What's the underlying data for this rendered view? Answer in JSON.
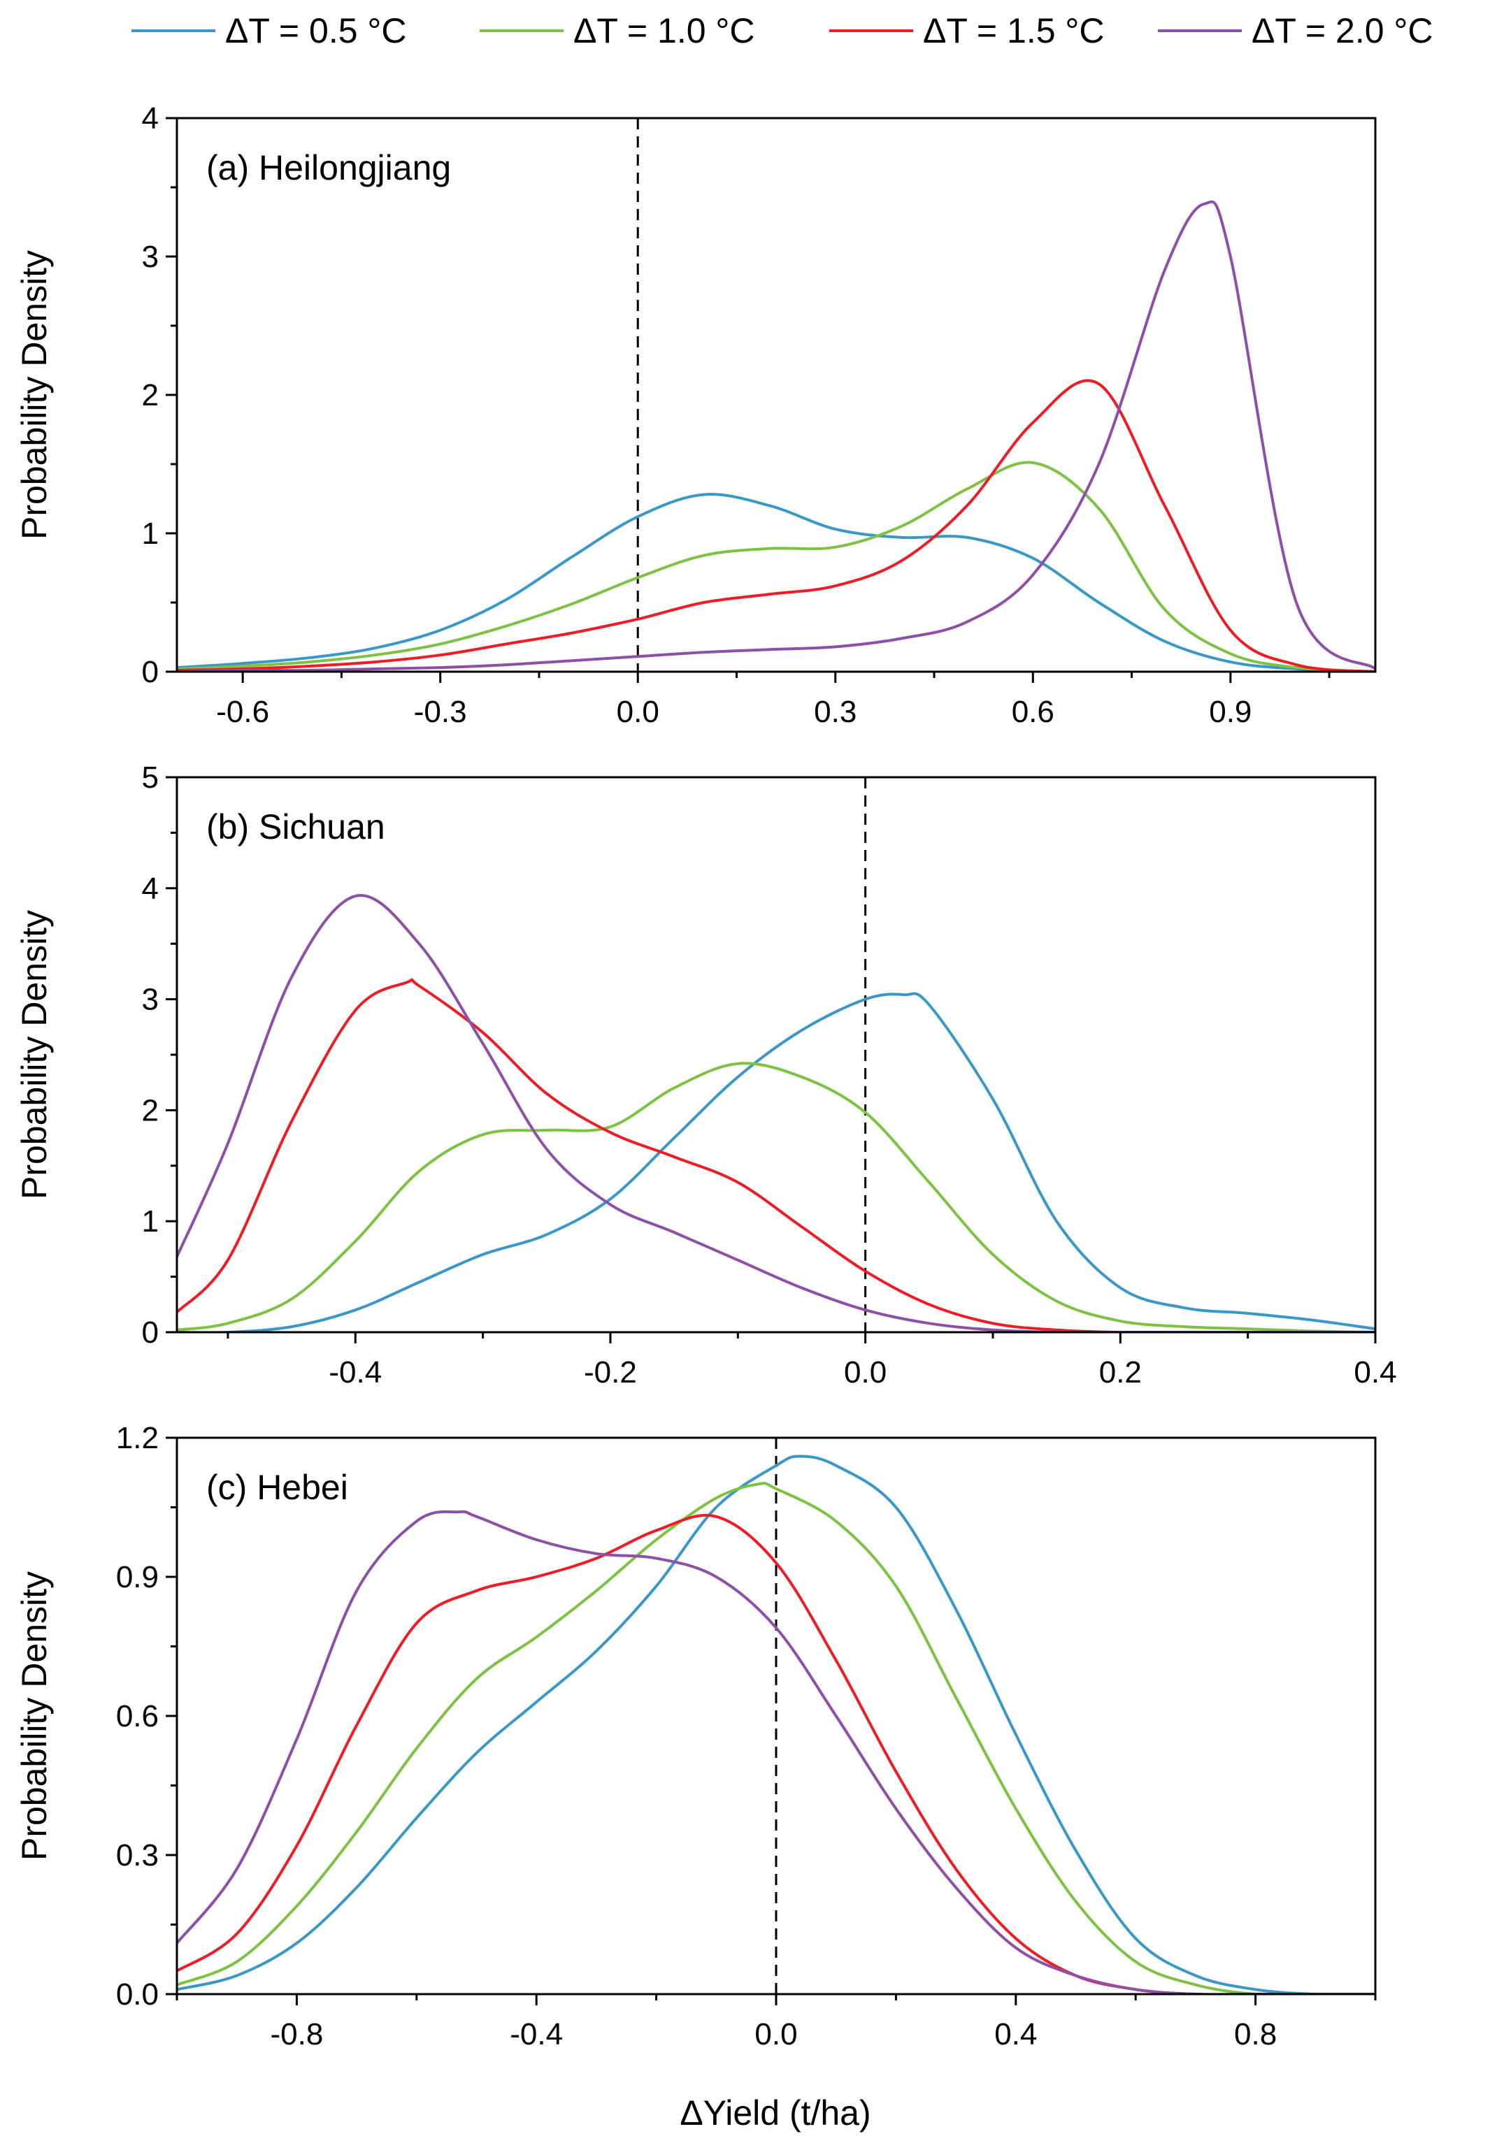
{
  "colors": {
    "series": [
      "#3A98C9",
      "#7DC242",
      "#EE1C24",
      "#8E4FA8"
    ]
  },
  "legend": {
    "position": "top",
    "items": [
      "ΔT = 0.5 °C",
      "ΔT = 1.0 °C",
      "ΔT = 1.5 °C",
      "ΔT = 2.0 °C"
    ]
  },
  "shared_xlabel": "ΔYield (t/ha)",
  "chart_data": [
    {
      "type": "line",
      "title": "(a) Heilongjiang",
      "ylabel": "Probability Density",
      "xlabel": "",
      "xlim": [
        -0.7,
        1.12
      ],
      "ylim": [
        0,
        4
      ],
      "xticks": [
        -0.6,
        -0.3,
        0.0,
        0.3,
        0.6,
        0.9
      ],
      "xtick_labels": [
        "-0.6",
        "-0.3",
        "0.0",
        "0.3",
        "0.6",
        "0.9"
      ],
      "yticks": [
        0,
        1,
        2,
        3,
        4
      ],
      "ytick_labels": [
        "0",
        "1",
        "2",
        "3",
        "4"
      ],
      "reference_line_x": 0.0,
      "series": [
        {
          "name": "ΔT = 0.5 °C",
          "x": [
            -0.7,
            -0.6,
            -0.5,
            -0.4,
            -0.3,
            -0.2,
            -0.1,
            0.0,
            0.1,
            0.2,
            0.3,
            0.4,
            0.5,
            0.6,
            0.7,
            0.8,
            0.9,
            1.0,
            1.12
          ],
          "y": [
            0.03,
            0.06,
            0.1,
            0.17,
            0.3,
            0.52,
            0.83,
            1.12,
            1.28,
            1.2,
            1.03,
            0.97,
            0.97,
            0.82,
            0.5,
            0.22,
            0.07,
            0.02,
            0.0
          ]
        },
        {
          "name": "ΔT = 1.0 °C",
          "x": [
            -0.7,
            -0.6,
            -0.5,
            -0.4,
            -0.3,
            -0.2,
            -0.1,
            0.0,
            0.1,
            0.2,
            0.3,
            0.4,
            0.5,
            0.6,
            0.7,
            0.8,
            0.9,
            1.0,
            1.12
          ],
          "y": [
            0.02,
            0.04,
            0.07,
            0.12,
            0.2,
            0.33,
            0.49,
            0.68,
            0.84,
            0.89,
            0.9,
            1.05,
            1.32,
            1.51,
            1.18,
            0.45,
            0.13,
            0.03,
            0.0
          ]
        },
        {
          "name": "ΔT = 1.5 °C",
          "x": [
            -0.7,
            -0.6,
            -0.5,
            -0.4,
            -0.3,
            -0.2,
            -0.1,
            0.0,
            0.1,
            0.2,
            0.3,
            0.4,
            0.5,
            0.6,
            0.7,
            0.8,
            0.9,
            1.0,
            1.12
          ],
          "y": [
            0.01,
            0.02,
            0.04,
            0.07,
            0.12,
            0.2,
            0.28,
            0.38,
            0.5,
            0.56,
            0.62,
            0.8,
            1.2,
            1.8,
            2.08,
            1.2,
            0.3,
            0.05,
            0.0
          ]
        },
        {
          "name": "ΔT = 2.0 °C",
          "x": [
            -0.7,
            -0.6,
            -0.5,
            -0.4,
            -0.3,
            -0.2,
            -0.1,
            0.0,
            0.1,
            0.2,
            0.3,
            0.4,
            0.5,
            0.6,
            0.7,
            0.8,
            0.86,
            0.9,
            1.0,
            1.12
          ],
          "y": [
            0.0,
            0.01,
            0.01,
            0.02,
            0.03,
            0.05,
            0.08,
            0.11,
            0.14,
            0.16,
            0.18,
            0.24,
            0.36,
            0.7,
            1.5,
            2.9,
            3.38,
            3.0,
            0.5,
            0.02
          ]
        }
      ]
    },
    {
      "type": "line",
      "title": "(b) Sichuan",
      "ylabel": "Probability Density",
      "xlabel": "",
      "xlim": [
        -0.54,
        0.4
      ],
      "ylim": [
        0,
        5
      ],
      "xticks": [
        -0.4,
        -0.2,
        0.0,
        0.2,
        0.4
      ],
      "xtick_labels": [
        "-0.4",
        "-0.2",
        "0.0",
        "0.2",
        "0.4"
      ],
      "yticks": [
        0,
        1,
        2,
        3,
        4,
        5
      ],
      "ytick_labels": [
        "0",
        "1",
        "2",
        "3",
        "4",
        "5"
      ],
      "reference_line_x": 0.0,
      "series": [
        {
          "name": "ΔT = 0.5 °C",
          "x": [
            -0.54,
            -0.5,
            -0.45,
            -0.4,
            -0.35,
            -0.3,
            -0.25,
            -0.2,
            -0.15,
            -0.1,
            -0.05,
            0.0,
            0.03,
            0.05,
            0.1,
            0.15,
            0.2,
            0.25,
            0.3,
            0.35,
            0.4
          ],
          "y": [
            0.0,
            0.0,
            0.05,
            0.2,
            0.45,
            0.7,
            0.88,
            1.2,
            1.75,
            2.3,
            2.72,
            3.0,
            3.04,
            2.95,
            2.1,
            1.0,
            0.4,
            0.22,
            0.17,
            0.11,
            0.03
          ]
        },
        {
          "name": "ΔT = 1.0 °C",
          "x": [
            -0.54,
            -0.5,
            -0.45,
            -0.4,
            -0.35,
            -0.3,
            -0.25,
            -0.2,
            -0.15,
            -0.1,
            -0.05,
            0.0,
            0.05,
            0.1,
            0.15,
            0.2,
            0.25,
            0.3,
            0.35,
            0.4
          ],
          "y": [
            0.02,
            0.08,
            0.3,
            0.82,
            1.45,
            1.78,
            1.82,
            1.85,
            2.2,
            2.42,
            2.3,
            1.98,
            1.35,
            0.7,
            0.28,
            0.1,
            0.05,
            0.03,
            0.01,
            0.0
          ]
        },
        {
          "name": "ΔT = 1.5 °C",
          "x": [
            -0.54,
            -0.5,
            -0.45,
            -0.4,
            -0.36,
            -0.35,
            -0.3,
            -0.25,
            -0.2,
            -0.15,
            -0.1,
            -0.05,
            0.0,
            0.05,
            0.1,
            0.15,
            0.2,
            0.25,
            0.3,
            0.35,
            0.4
          ],
          "y": [
            0.18,
            0.65,
            1.9,
            2.9,
            3.15,
            3.12,
            2.7,
            2.15,
            1.8,
            1.58,
            1.35,
            0.95,
            0.55,
            0.25,
            0.08,
            0.02,
            0.0,
            0.0,
            0.0,
            0.0,
            0.0
          ]
        },
        {
          "name": "ΔT = 2.0 °C",
          "x": [
            -0.54,
            -0.5,
            -0.45,
            -0.4,
            -0.35,
            -0.3,
            -0.25,
            -0.2,
            -0.15,
            -0.1,
            -0.05,
            0.0,
            0.05,
            0.1,
            0.15,
            0.2,
            0.25,
            0.3,
            0.35,
            0.4
          ],
          "y": [
            0.68,
            1.7,
            3.2,
            3.93,
            3.5,
            2.6,
            1.65,
            1.15,
            0.9,
            0.65,
            0.4,
            0.2,
            0.08,
            0.02,
            0.0,
            0.0,
            0.0,
            0.0,
            0.0,
            0.0
          ]
        }
      ]
    },
    {
      "type": "line",
      "title": "(c) Hebei",
      "ylabel": "Probability Density",
      "xlabel": "ΔYield (t/ha)",
      "xlim": [
        -1.0,
        1.0
      ],
      "ylim": [
        0,
        1.2
      ],
      "xticks": [
        -0.8,
        -0.4,
        0.0,
        0.4,
        0.8
      ],
      "xtick_labels": [
        "-0.8",
        "-0.4",
        "0.0",
        "0.4",
        "0.8"
      ],
      "yticks": [
        0,
        0.3,
        0.6,
        0.9,
        1.2
      ],
      "ytick_labels": [
        "0.0",
        "0.3",
        "0.6",
        "0.9",
        "1.2"
      ],
      "reference_line_x": 0.0,
      "series": [
        {
          "name": "ΔT = 0.5 °C",
          "x": [
            -1.0,
            -0.9,
            -0.8,
            -0.7,
            -0.6,
            -0.5,
            -0.4,
            -0.3,
            -0.2,
            -0.1,
            0.0,
            0.04,
            0.1,
            0.2,
            0.3,
            0.4,
            0.5,
            0.6,
            0.7,
            0.8,
            0.9,
            1.0
          ],
          "y": [
            0.01,
            0.04,
            0.11,
            0.23,
            0.38,
            0.52,
            0.63,
            0.74,
            0.88,
            1.05,
            1.14,
            1.16,
            1.14,
            1.05,
            0.83,
            0.56,
            0.31,
            0.12,
            0.04,
            0.01,
            0.0,
            0.0
          ]
        },
        {
          "name": "ΔT = 1.0 °C",
          "x": [
            -1.0,
            -0.9,
            -0.8,
            -0.7,
            -0.6,
            -0.5,
            -0.4,
            -0.3,
            -0.2,
            -0.1,
            -0.03,
            0.0,
            0.1,
            0.2,
            0.3,
            0.4,
            0.5,
            0.6,
            0.7,
            0.8,
            0.9,
            1.0
          ],
          "y": [
            0.02,
            0.07,
            0.19,
            0.35,
            0.53,
            0.68,
            0.77,
            0.87,
            0.98,
            1.07,
            1.1,
            1.09,
            1.02,
            0.88,
            0.64,
            0.4,
            0.2,
            0.07,
            0.02,
            0.0,
            0.0,
            0.0
          ]
        },
        {
          "name": "ΔT = 1.5 °C",
          "x": [
            -1.0,
            -0.9,
            -0.8,
            -0.7,
            -0.6,
            -0.5,
            -0.4,
            -0.3,
            -0.2,
            -0.1,
            0.0,
            0.1,
            0.2,
            0.3,
            0.4,
            0.5,
            0.6,
            0.7,
            0.8,
            0.9,
            1.0
          ],
          "y": [
            0.05,
            0.13,
            0.32,
            0.58,
            0.8,
            0.87,
            0.9,
            0.94,
            1.0,
            1.03,
            0.93,
            0.72,
            0.48,
            0.27,
            0.12,
            0.04,
            0.01,
            0.0,
            0.0,
            0.0,
            0.0
          ]
        },
        {
          "name": "ΔT = 2.0 °C",
          "x": [
            -1.0,
            -0.9,
            -0.8,
            -0.7,
            -0.6,
            -0.53,
            -0.5,
            -0.4,
            -0.3,
            -0.2,
            -0.1,
            0.0,
            0.1,
            0.2,
            0.3,
            0.4,
            0.5,
            0.6,
            0.7,
            0.8,
            0.9,
            1.0
          ],
          "y": [
            0.11,
            0.27,
            0.55,
            0.87,
            1.02,
            1.04,
            1.03,
            0.98,
            0.95,
            0.94,
            0.9,
            0.79,
            0.6,
            0.4,
            0.23,
            0.1,
            0.04,
            0.01,
            0.0,
            0.0,
            0.0,
            0.0
          ]
        }
      ]
    }
  ]
}
